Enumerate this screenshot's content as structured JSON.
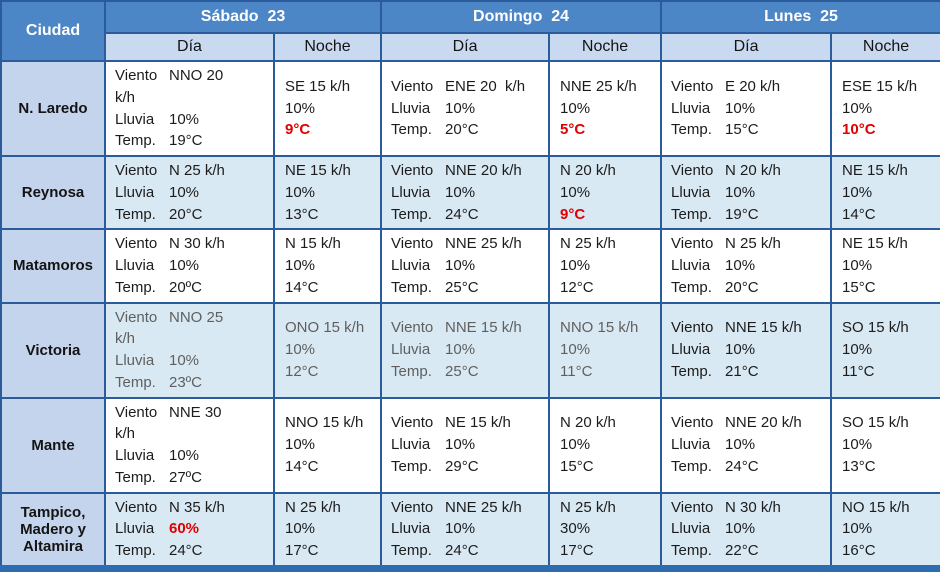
{
  "colors": {
    "header_blue": "#4d86c6",
    "subheader_blue": "#c8d9f0",
    "city_column_blue": "#c3d4ec",
    "shaded_row_blue": "#d8e9f3",
    "border_blue": "#2a5c9c",
    "bottom_band_blue": "#2d6cb0",
    "alert_red": "#e10000",
    "text_black": "#1c1c1c"
  },
  "table": {
    "corner_header": "Ciudad",
    "day_headers": [
      {
        "label": "Sábado  23"
      },
      {
        "label": "Domingo  24"
      },
      {
        "label": "Lunes  25"
      }
    ],
    "subheaders": {
      "day": "Día",
      "night": "Noche"
    },
    "field_labels": {
      "wind": "Viento",
      "rain": "Lluvia",
      "temp": "Temp."
    },
    "rows": [
      {
        "city": "N. Laredo",
        "cells": [
          {
            "kind": "day",
            "wind": "NNO 20\nk/h",
            "rain": "10%",
            "temp": "19°C"
          },
          {
            "kind": "night",
            "wind": "SE 15 k/h",
            "rain": "10%",
            "temp": "9°C",
            "temp_red": true
          },
          {
            "kind": "day",
            "wind": "ENE 20  k/h",
            "rain": "10%",
            "temp": "20°C"
          },
          {
            "kind": "night",
            "wind": "NNE 25 k/h",
            "rain": "10%",
            "temp": "5°C",
            "temp_red": true
          },
          {
            "kind": "day",
            "wind": "E 20 k/h",
            "rain": "10%",
            "temp": "15°C"
          },
          {
            "kind": "night",
            "wind": "ESE 15 k/h",
            "rain": "10%",
            "temp": "10°C",
            "temp_red": true
          }
        ]
      },
      {
        "city": "Reynosa",
        "cells": [
          {
            "kind": "day",
            "wind": "N 25 k/h",
            "rain": "10%",
            "temp": "20°C"
          },
          {
            "kind": "night",
            "wind": "NE 15 k/h",
            "rain": "10%",
            "temp": "13°C"
          },
          {
            "kind": "day",
            "wind": "NNE 20 k/h",
            "rain": "10%",
            "temp": "24°C"
          },
          {
            "kind": "night",
            "wind": "N 20 k/h",
            "rain": "10%",
            "temp": "9°C",
            "temp_red": true
          },
          {
            "kind": "day",
            "wind": "N 20 k/h",
            "rain": "10%",
            "temp": "19°C"
          },
          {
            "kind": "night",
            "wind": "NE 15 k/h",
            "rain": "10%",
            "temp": "14°C"
          }
        ]
      },
      {
        "city": "Matamoros",
        "cells": [
          {
            "kind": "day",
            "wind": "N 30 k/h",
            "rain": "10%",
            "temp": "20ºC"
          },
          {
            "kind": "night",
            "wind": "N 15 k/h",
            "rain": "10%",
            "temp": "14°C"
          },
          {
            "kind": "day",
            "wind": "NNE 25 k/h",
            "rain": "10%",
            "temp": "25°C"
          },
          {
            "kind": "night",
            "wind": "N 25 k/h",
            "rain": "10%",
            "temp": "12°C"
          },
          {
            "kind": "day",
            "wind": "N 25 k/h",
            "rain": "10%",
            "temp": "20°C"
          },
          {
            "kind": "night",
            "wind": "NE 15 k/h",
            "rain": "10%",
            "temp": "15°C"
          }
        ]
      },
      {
        "city": "Victoria",
        "cells": [
          {
            "kind": "day",
            "wind": "NNO 25\nk/h",
            "rain": "10%",
            "temp": "23ºC",
            "muted": true
          },
          {
            "kind": "night",
            "wind": "ONO 15 k/h",
            "rain": "10%",
            "temp": "12°C",
            "muted": true
          },
          {
            "kind": "day",
            "wind": "NNE 15 k/h",
            "rain": "10%",
            "temp": "25°C",
            "muted": true
          },
          {
            "kind": "night",
            "wind": "NNO 15 k/h",
            "rain": "10%",
            "temp": "11°C",
            "muted": true
          },
          {
            "kind": "day",
            "wind": "NNE 15 k/h",
            "rain": "10%",
            "temp": "21°C"
          },
          {
            "kind": "night",
            "wind": "SO 15 k/h",
            "rain": "10%",
            "temp": "11°C"
          }
        ]
      },
      {
        "city": "Mante",
        "cells": [
          {
            "kind": "day",
            "wind": "NNE 30\nk/h",
            "rain": "10%",
            "temp": "27ºC"
          },
          {
            "kind": "night",
            "wind": "NNO 15 k/h",
            "rain": "10%",
            "temp": "14°C"
          },
          {
            "kind": "day",
            "wind": "NE 15 k/h",
            "rain": "10%",
            "temp": "29°C"
          },
          {
            "kind": "night",
            "wind": "N 20 k/h",
            "rain": "10%",
            "temp": "15°C"
          },
          {
            "kind": "day",
            "wind": "NNE 20 k/h",
            "rain": "10%",
            "temp": "24°C"
          },
          {
            "kind": "night",
            "wind": "SO 15 k/h",
            "rain": "10%",
            "temp": "13°C"
          }
        ]
      },
      {
        "city": "Tampico, Madero y Altamira",
        "cells": [
          {
            "kind": "day",
            "wind": "N 35 k/h",
            "rain": "60%",
            "temp": "24°C",
            "rain_red": true
          },
          {
            "kind": "night",
            "wind": "N 25 k/h",
            "rain": "10%",
            "temp": "17°C"
          },
          {
            "kind": "day",
            "wind": "NNE 25 k/h",
            "rain": "10%",
            "temp": "24°C"
          },
          {
            "kind": "night",
            "wind": "N 25 k/h",
            "rain": "30%",
            "temp": "17°C"
          },
          {
            "kind": "day",
            "wind": "N 30 k/h",
            "rain": "10%",
            "temp": "22°C"
          },
          {
            "kind": "night",
            "wind": "NO 15 k/h",
            "rain": "10%",
            "temp": "16°C"
          }
        ]
      }
    ]
  }
}
